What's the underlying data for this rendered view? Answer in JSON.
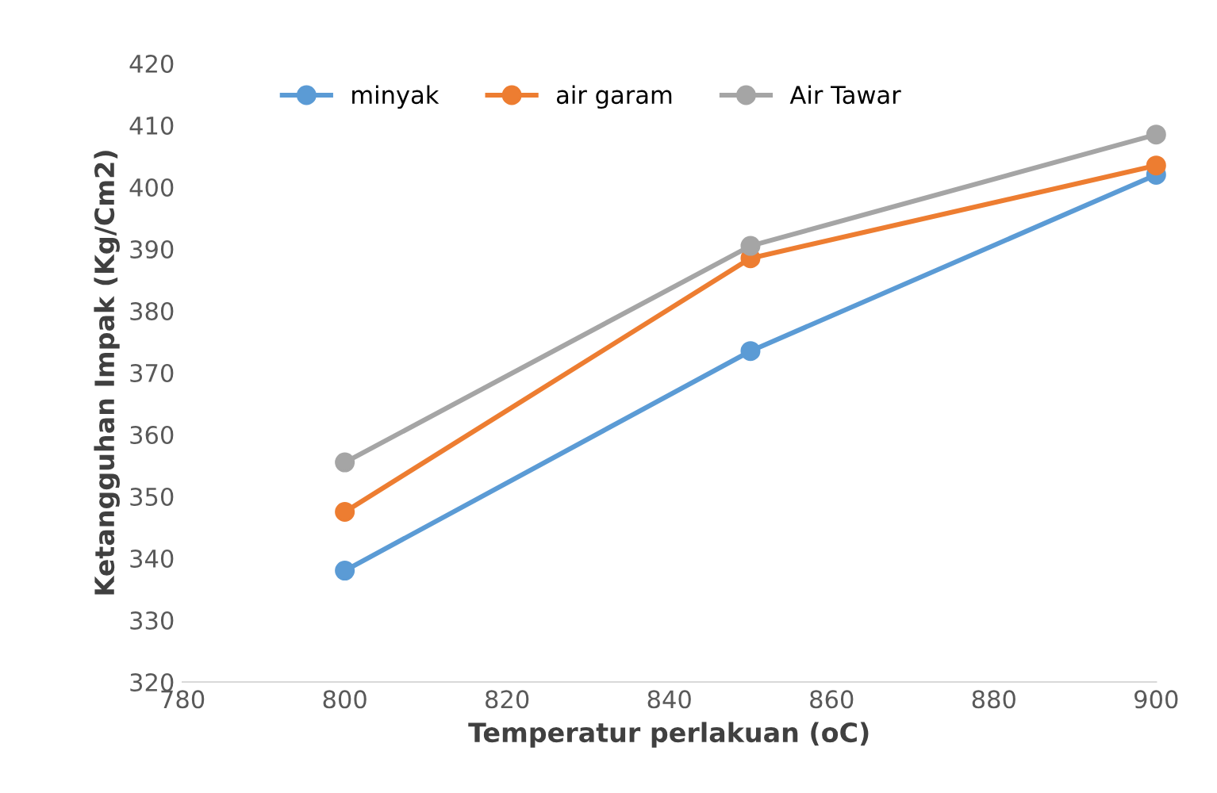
{
  "chart_data": {
    "type": "line",
    "xlabel": "Temperatur perlakuan (oC)",
    "ylabel": "Ketangguhan Impak (Kg/Cm2)",
    "x": [
      800,
      850,
      900
    ],
    "series": [
      {
        "name": "minyak",
        "color": "#5b9bd5",
        "values": [
          338,
          373.5,
          402
        ]
      },
      {
        "name": "air garam",
        "color": "#ed7d31",
        "values": [
          347.5,
          388.5,
          403.5
        ]
      },
      {
        "name": "Air Tawar",
        "color": "#a5a5a5",
        "values": [
          355.5,
          390.5,
          408.5
        ]
      }
    ],
    "xlim": [
      780,
      900
    ],
    "xticks": [
      780,
      800,
      820,
      840,
      860,
      880,
      900
    ],
    "ylim": [
      320,
      420
    ],
    "yticks": [
      320,
      330,
      340,
      350,
      360,
      370,
      380,
      390,
      400,
      410,
      420
    ],
    "grid": false,
    "legend": "top left",
    "marker": "circle",
    "line_style": "solid"
  }
}
